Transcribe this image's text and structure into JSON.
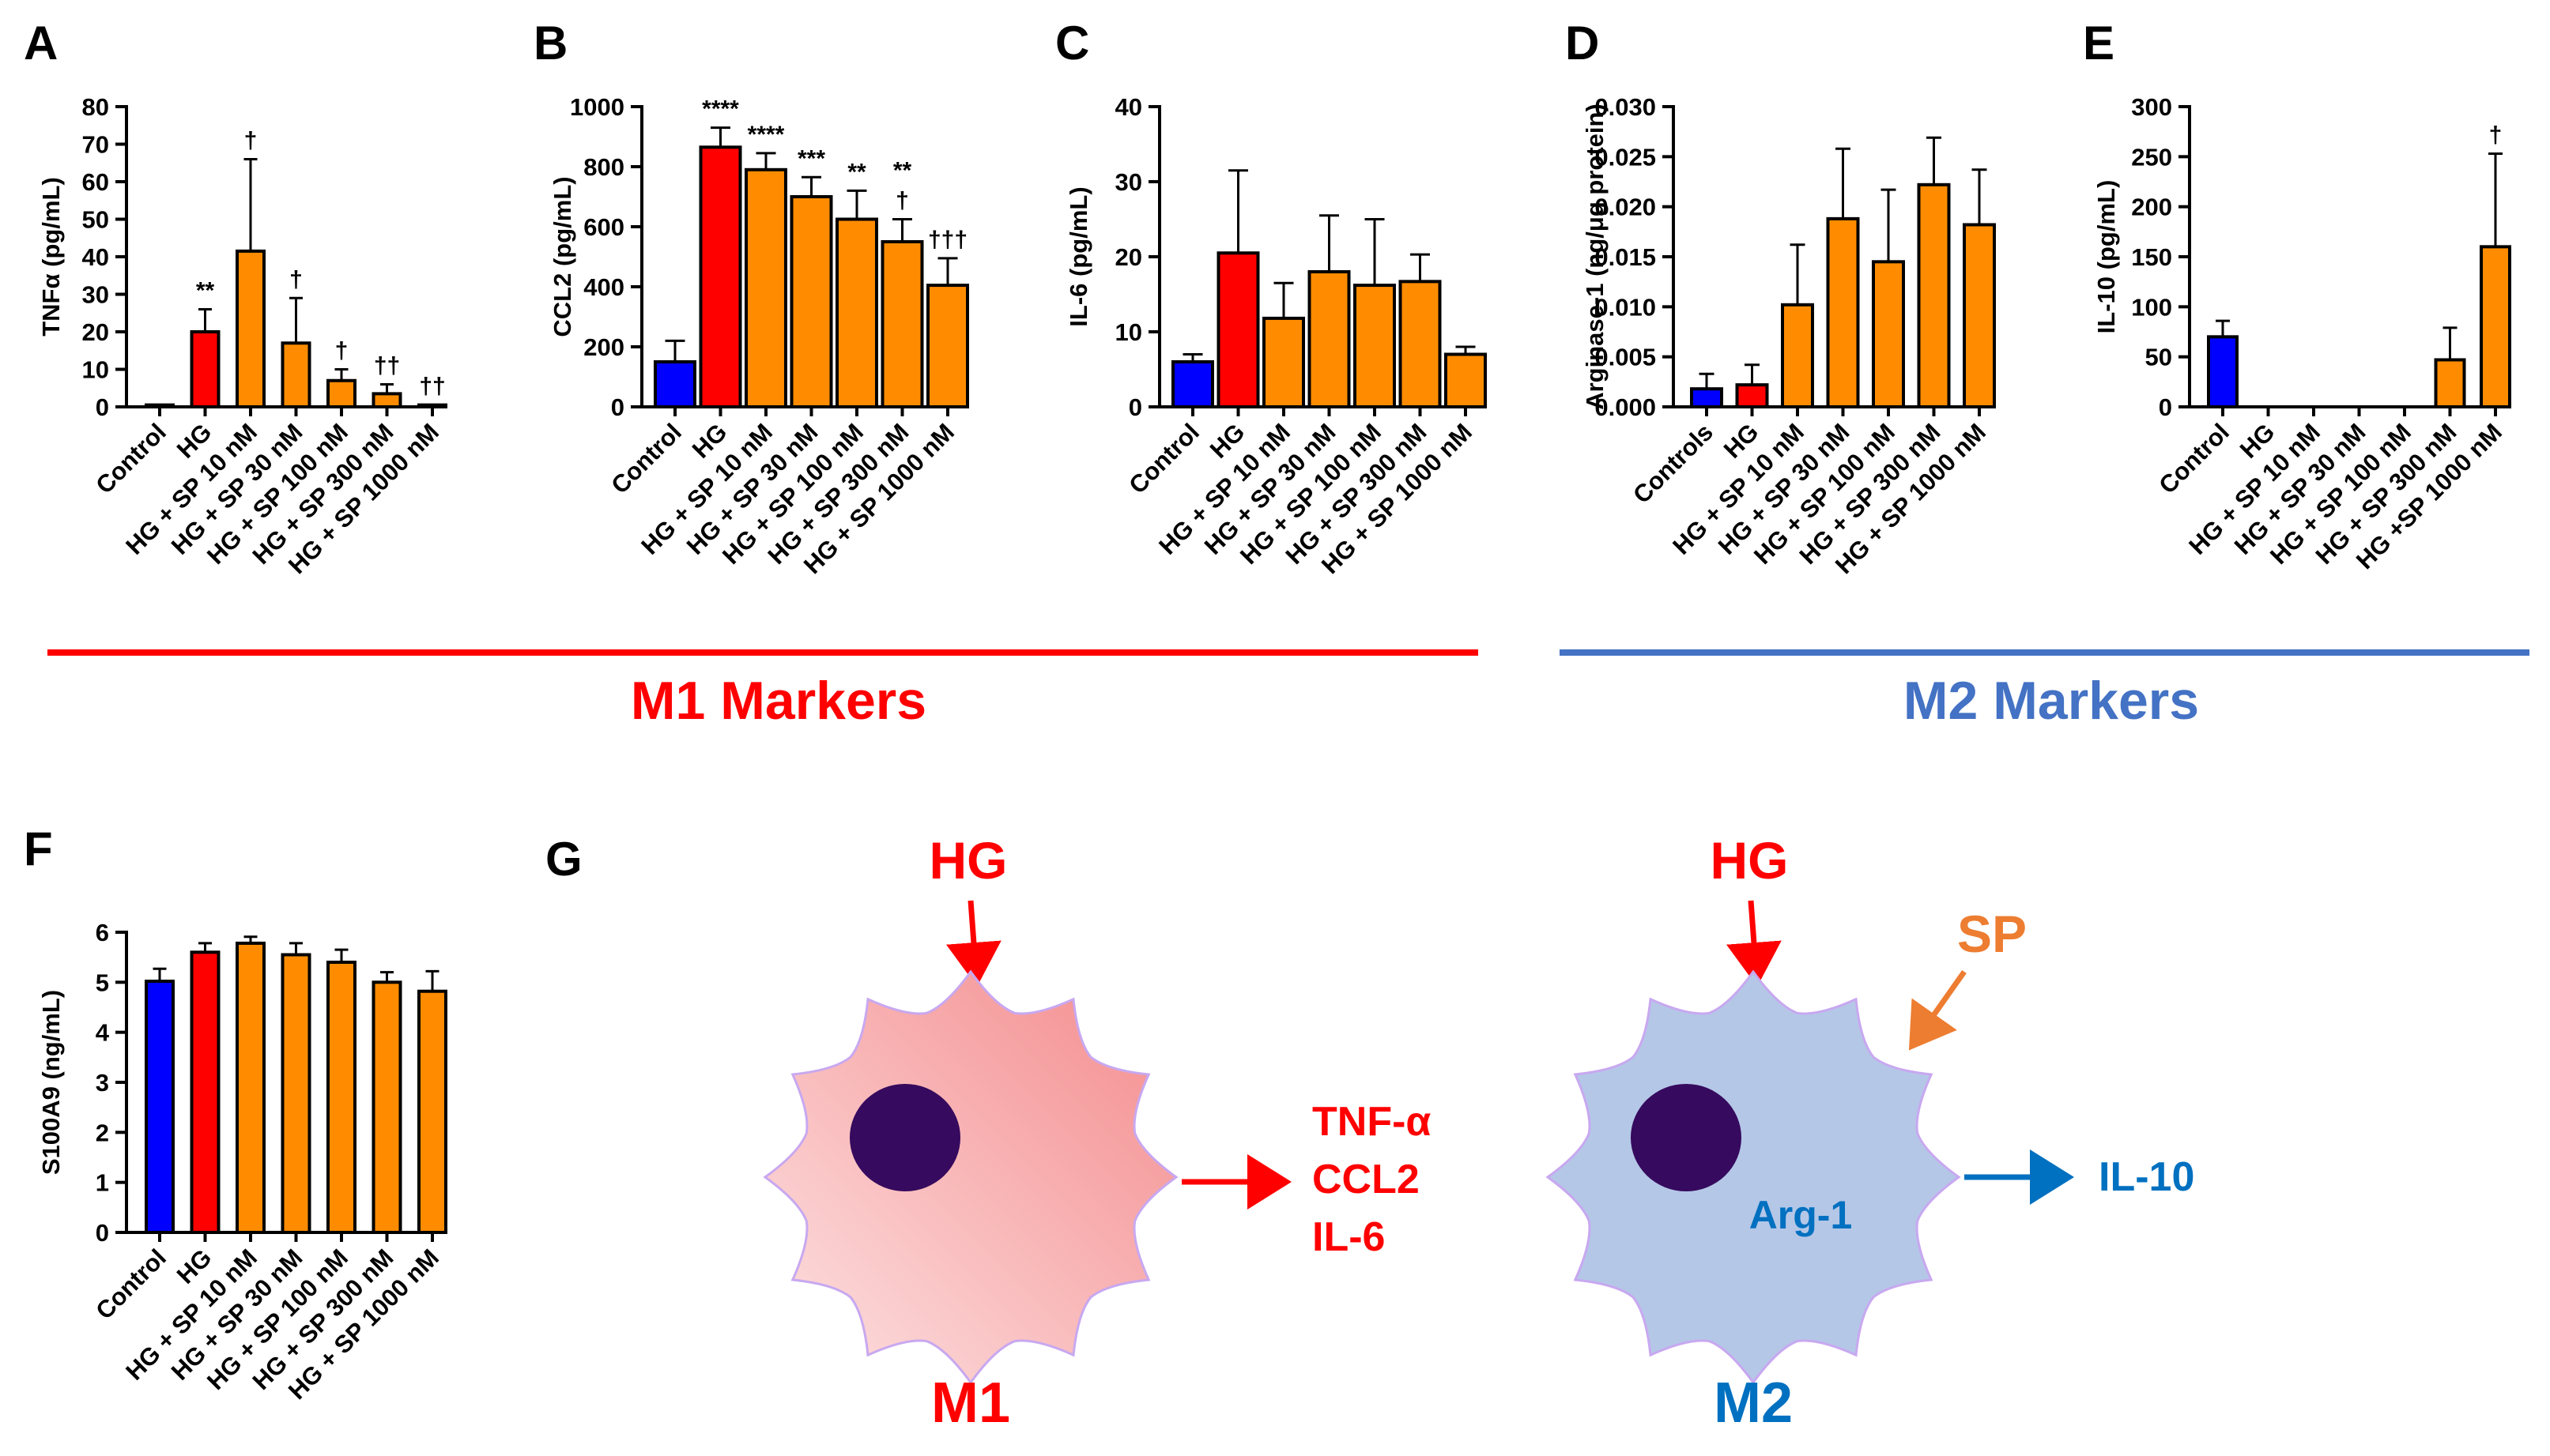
{
  "figure": {
    "m1_label": "M1 Markers",
    "m2_label": "M2 Markers",
    "line_colors": {
      "m1": "#ff0000",
      "m2": "#4472c4"
    }
  },
  "chart_data": [
    {
      "panel": "A",
      "type": "bar",
      "ylabel": "TNFα (pg/mL)",
      "ylim": [
        0,
        80
      ],
      "yticks": [
        0,
        10,
        20,
        30,
        40,
        50,
        60,
        70,
        80
      ],
      "categories": [
        "Control",
        "HG",
        "HG + SP 10 nM",
        "HG + SP 30 nM",
        "HG + SP 100 nM",
        "HG + SP 300 nM",
        "HG + SP 1000 nM"
      ],
      "values": [
        0.5,
        20,
        41.5,
        17,
        7,
        3.5,
        0.5
      ],
      "errors": [
        0,
        6,
        24.5,
        12,
        3,
        2.5,
        0
      ],
      "colors": [
        "#0000ff",
        "#ff0000",
        "#ff8c00",
        "#ff8c00",
        "#ff8c00",
        "#ff8c00",
        "#ff8c00"
      ],
      "annotations": [
        "",
        "**",
        "†",
        "†",
        "†",
        "††",
        "††"
      ]
    },
    {
      "panel": "B",
      "type": "bar",
      "ylabel": "CCL2 (pg/mL)",
      "ylim": [
        0,
        1000
      ],
      "yticks": [
        0,
        200,
        400,
        600,
        800,
        1000
      ],
      "categories": [
        "Control",
        "HG",
        "HG + SP 10 nM",
        "HG + SP 30 nM",
        "HG + SP 100 nM",
        "HG + SP 300 nM",
        "HG + SP 1000 nM"
      ],
      "values": [
        150,
        865,
        790,
        700,
        625,
        550,
        405
      ],
      "errors": [
        70,
        65,
        55,
        65,
        95,
        75,
        90
      ],
      "colors": [
        "#0000ff",
        "#ff0000",
        "#ff8c00",
        "#ff8c00",
        "#ff8c00",
        "#ff8c00",
        "#ff8c00"
      ],
      "annotations": [
        "",
        "****",
        "****",
        "***",
        "**",
        "**\n†",
        "†††"
      ]
    },
    {
      "panel": "C",
      "type": "bar",
      "ylabel": "IL-6 (pg/mL)",
      "ylim": [
        0,
        40
      ],
      "yticks": [
        0,
        10,
        20,
        30,
        40
      ],
      "categories": [
        "Control",
        "HG",
        "HG + SP 10 nM",
        "HG + SP 30 nM",
        "HG + SP 100 nM",
        "HG + SP 300 nM",
        "HG + SP 1000 nM"
      ],
      "values": [
        6,
        20.5,
        11.8,
        18,
        16.2,
        16.7,
        7
      ],
      "errors": [
        1,
        11,
        4.7,
        7.5,
        8.8,
        3.6,
        1
      ],
      "colors": [
        "#0000ff",
        "#ff0000",
        "#ff8c00",
        "#ff8c00",
        "#ff8c00",
        "#ff8c00",
        "#ff8c00"
      ],
      "annotations": [
        "",
        "",
        "",
        "",
        "",
        "",
        ""
      ]
    },
    {
      "panel": "D",
      "type": "bar",
      "ylabel": "Arginase-1 (ng/μg protein)",
      "ylim": [
        0,
        0.03
      ],
      "yticks": [
        "0.000",
        "0.005",
        "0.010",
        "0.015",
        "0.020",
        "0.025",
        "0.030"
      ],
      "categories": [
        "Controls",
        "HG",
        "HG + SP 10 nM",
        "HG + SP 30 nM",
        "HG + SP 100 nM",
        "HG + SP 300 nM",
        "HG + SP 1000 nM"
      ],
      "values": [
        0.0018,
        0.0022,
        0.0102,
        0.0188,
        0.0145,
        0.0222,
        0.0182
      ],
      "errors": [
        0.0015,
        0.002,
        0.006,
        0.007,
        0.0072,
        0.0047,
        0.0055
      ],
      "colors": [
        "#0000ff",
        "#ff0000",
        "#ff8c00",
        "#ff8c00",
        "#ff8c00",
        "#ff8c00",
        "#ff8c00"
      ],
      "annotations": [
        "",
        "",
        "",
        "",
        "",
        "",
        ""
      ]
    },
    {
      "panel": "E",
      "type": "bar",
      "ylabel": "IL-10 (pg/mL)",
      "ylim": [
        0,
        300
      ],
      "yticks": [
        0,
        50,
        100,
        150,
        200,
        250,
        300
      ],
      "categories": [
        "Control",
        "HG",
        "HG + SP 10 nM",
        "HG + SP 30 nM",
        "HG + SP 100 nM",
        "HG + SP 300 nM",
        "HG +SP 1000 nM"
      ],
      "values": [
        70,
        0,
        0,
        0,
        0,
        47,
        160
      ],
      "errors": [
        16,
        0,
        0,
        0,
        0,
        32,
        93
      ],
      "colors": [
        "#0000ff",
        "#ff0000",
        "#ff8c00",
        "#ff8c00",
        "#ff8c00",
        "#ff8c00",
        "#ff8c00"
      ],
      "annotations": [
        "",
        "",
        "",
        "",
        "",
        "",
        "†"
      ]
    },
    {
      "panel": "F",
      "type": "bar",
      "ylabel": "S100A9 (ng/mL)",
      "ylim": [
        0,
        6
      ],
      "yticks": [
        0,
        1,
        2,
        3,
        4,
        5,
        6
      ],
      "categories": [
        "Control",
        "HG",
        "HG + SP 10 nM",
        "HG + SP 30 nM",
        "HG + SP 100 nM",
        "HG + SP 300 nM",
        "HG + SP 1000 nM"
      ],
      "values": [
        5.02,
        5.6,
        5.78,
        5.55,
        5.4,
        5.0,
        4.82
      ],
      "errors": [
        0.25,
        0.18,
        0.13,
        0.23,
        0.25,
        0.2,
        0.4
      ],
      "colors": [
        "#0000ff",
        "#ff0000",
        "#ff8c00",
        "#ff8c00",
        "#ff8c00",
        "#ff8c00",
        "#ff8c00"
      ],
      "annotations": [
        "",
        "",
        "",
        "",
        "",
        "",
        ""
      ]
    }
  ],
  "schematic": {
    "panel": "G",
    "m1": {
      "stimulus": "HG",
      "outputs": [
        "TNF-α",
        "CCL2",
        "IL-6"
      ],
      "label": "M1",
      "color": "#ff0000"
    },
    "m2": {
      "stimulus": "HG",
      "modulator": "SP",
      "internal": "Arg-1",
      "output": "IL-10",
      "label": "M2",
      "color": "#0070c0",
      "modulator_color": "#ed7d31"
    }
  }
}
